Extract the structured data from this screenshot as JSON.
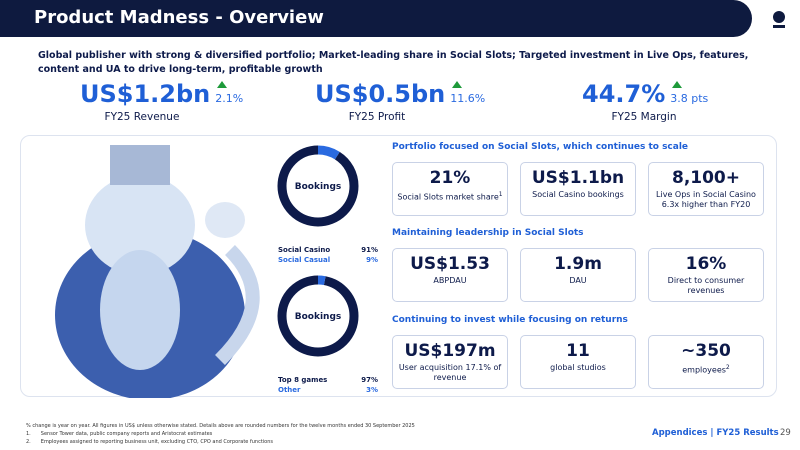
{
  "header": {
    "title": "Product Madness - Overview"
  },
  "summary": "Global publisher with strong & diversified portfolio; Market-leading share in Social Slots; Targeted investment in Live Ops, features, content and UA to drive long-term, profitable growth",
  "headline_kpis": [
    {
      "value": "US$1.2bn",
      "change": "2.1%",
      "label": "FY25 Revenue"
    },
    {
      "value": "US$0.5bn",
      "change": "11.6%",
      "label": "FY25 Profit"
    },
    {
      "value": "44.7%",
      "change": "3.8 pts",
      "label": "FY25 Margin"
    }
  ],
  "donuts": [
    {
      "type": "donut",
      "title": "Bookings",
      "categories": [
        "Social Casino",
        "Social Casual"
      ],
      "values": [
        91,
        9
      ],
      "value_labels": [
        "91%",
        "9%"
      ],
      "colors": [
        "#0d1a4a",
        "#2a6ae0"
      ]
    },
    {
      "type": "donut",
      "title": "Bookings",
      "categories": [
        "Top 8 games",
        "Other"
      ],
      "values": [
        97,
        3
      ],
      "value_labels": [
        "97%",
        "3%"
      ],
      "colors": [
        "#0d1a4a",
        "#2a6ae0"
      ]
    }
  ],
  "sections": [
    {
      "title": "Portfolio focused on Social Slots, which continues to scale",
      "cards": [
        {
          "value": "21%",
          "label": "Social Slots market share",
          "note": "1"
        },
        {
          "value": "US$1.1bn",
          "label": "Social Casino bookings"
        },
        {
          "value": "8,100+",
          "label": "Live Ops in Social Casino 6.3x higher than FY20"
        }
      ]
    },
    {
      "title": "Maintaining leadership in Social Slots",
      "cards": [
        {
          "value": "US$1.53",
          "label": "ABPDAU"
        },
        {
          "value": "1.9m",
          "label": "DAU"
        },
        {
          "value": "16%",
          "label": "Direct to consumer revenues"
        }
      ]
    },
    {
      "title": "Continuing to invest while focusing on returns",
      "cards": [
        {
          "value": "US$197m",
          "label": "User acquisition 17.1% of revenue"
        },
        {
          "value": "11",
          "label": "global studios"
        },
        {
          "value": "~350",
          "label": "employees",
          "note": "2"
        }
      ]
    }
  ],
  "footnotes": [
    {
      "text": "% change is year on year. All figures in US$ unless otherwise stated. Details above are rounded numbers for the twelve months ended 30 September 2025"
    },
    {
      "marker": "1.",
      "text": "Sensor Tower data, public company reports and Aristocrat estimates"
    },
    {
      "marker": "2.",
      "text": "Employees assigned to reporting business unit, excluding CTO, CPO and Corporate functions"
    }
  ],
  "footer": {
    "section": "Appendices | FY25 Results",
    "page": "29"
  }
}
